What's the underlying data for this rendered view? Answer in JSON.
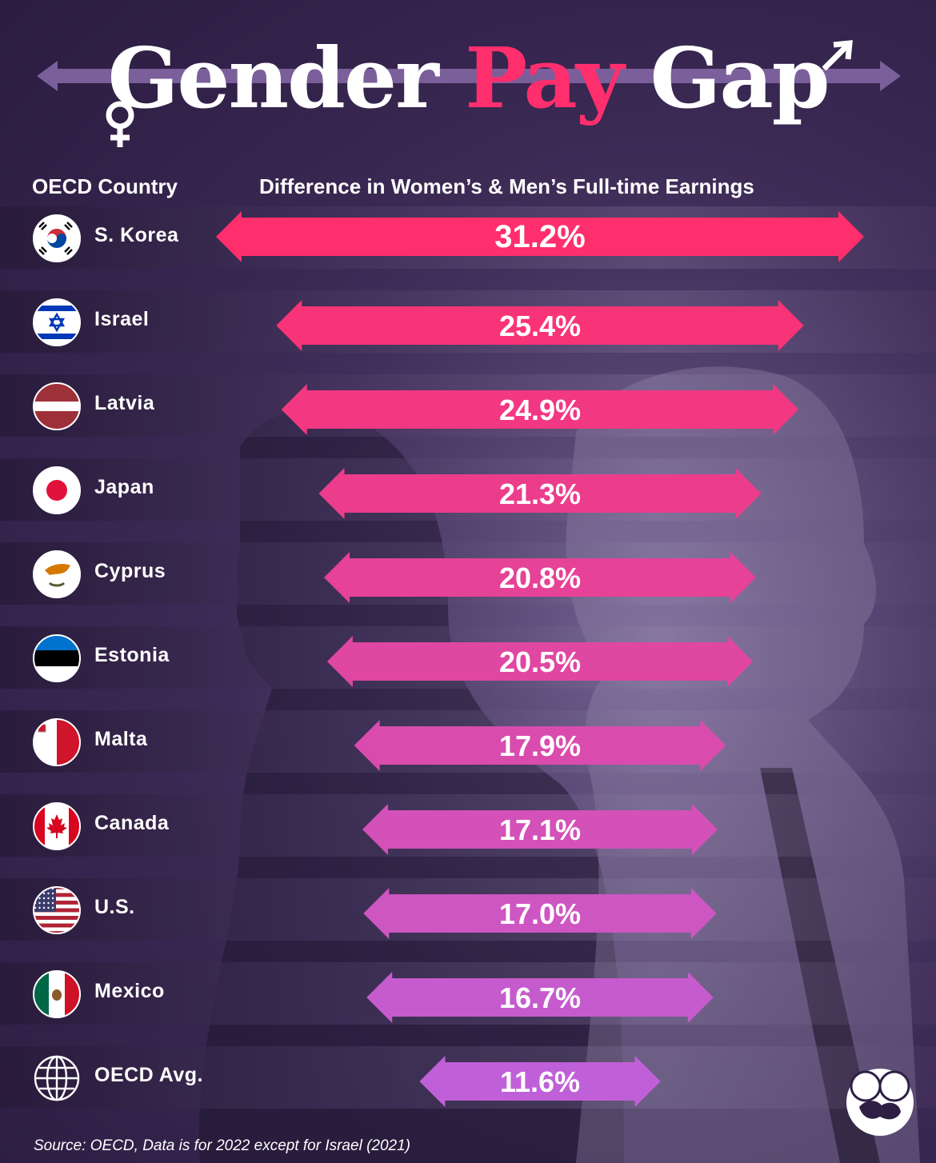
{
  "title": {
    "word1": "Gender",
    "word2": "Pay",
    "word3": "Gap"
  },
  "headers": {
    "country": "OECD Country",
    "difference": "Difference in Women’s & Men’s Full-time Earnings"
  },
  "source": "Source: OECD, Data is for 2022 except for Israel (2021)",
  "colors": {
    "background": "#2f1f45",
    "title_accent": "#ff2e6c",
    "bar_top": "#ff2e6c",
    "bar_bottom": "#c060d8"
  },
  "chart_data": {
    "type": "bar",
    "categories": [
      "S. Korea",
      "Israel",
      "Latvia",
      "Japan",
      "Cyprus",
      "Estonia",
      "Malta",
      "Canada",
      "U.S.",
      "Mexico",
      "OECD Avg."
    ],
    "values": [
      31.2,
      25.4,
      24.9,
      21.3,
      20.8,
      20.5,
      17.9,
      17.1,
      17.0,
      16.7,
      11.6
    ],
    "value_labels": [
      "31.2%",
      "25.4%",
      "24.9%",
      "21.3%",
      "20.8%",
      "20.5%",
      "17.9%",
      "17.1%",
      "17.0%",
      "16.7%",
      "11.6%"
    ],
    "flags": [
      "south-korea-flag-icon",
      "israel-flag-icon",
      "latvia-flag-icon",
      "japan-flag-icon",
      "cyprus-flag-icon",
      "estonia-flag-icon",
      "malta-flag-icon",
      "canada-flag-icon",
      "usa-flag-icon",
      "mexico-flag-icon",
      "globe-icon"
    ],
    "title": "Gender Pay Gap",
    "xlabel": "Difference in Women’s & Men’s Full-time Earnings",
    "ylabel": "OECD Country",
    "xlim": [
      0,
      31.2
    ],
    "orientation": "horizontal",
    "bar_style": "double-headed arrow, centered"
  }
}
